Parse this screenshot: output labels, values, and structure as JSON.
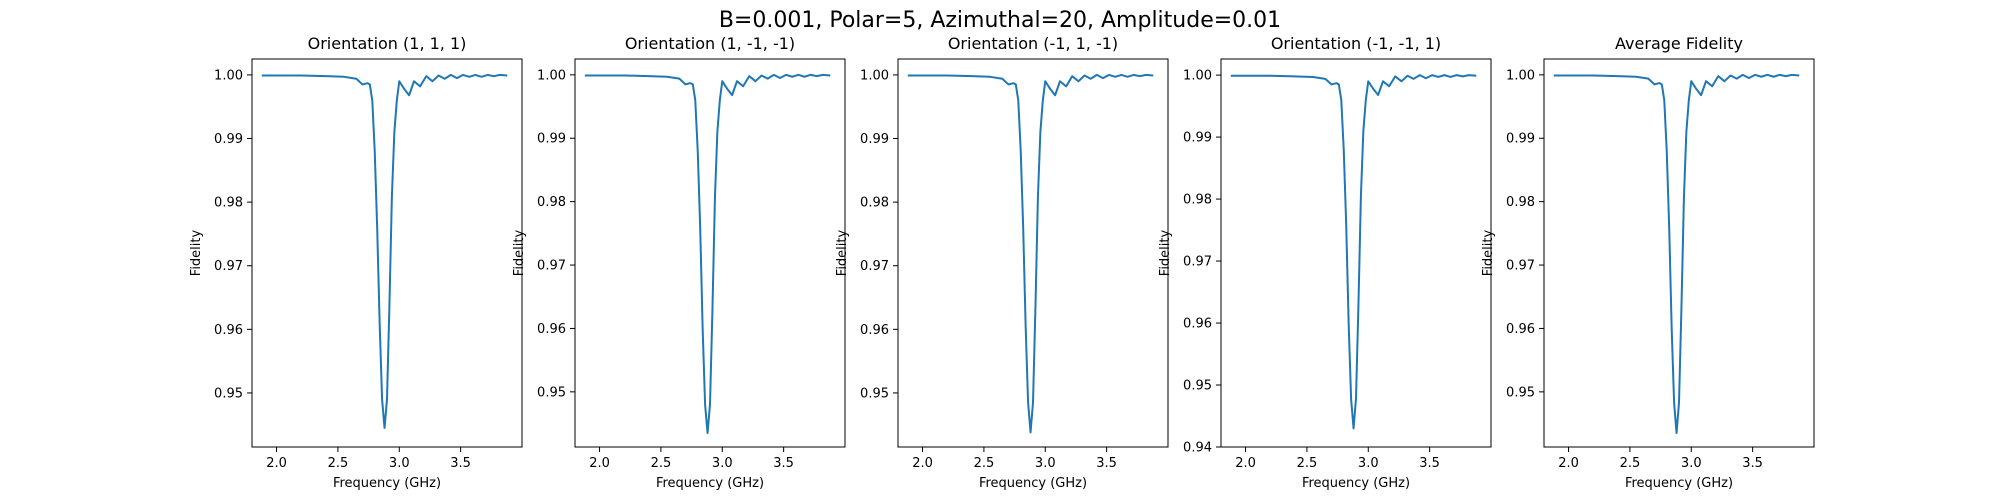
{
  "figure": {
    "suptitle": "B=0.001, Polar=5, Azimuthal=20, Amplitude=0.01",
    "series_color": "#1f77b4"
  },
  "chart_data": [
    {
      "type": "line",
      "title": "Orientation (1, 1, 1)",
      "xlabel": "Frequency (GHz)",
      "ylabel": "Fidelity",
      "xlim": [
        1.8,
        4.0
      ],
      "ylim": [
        0.9415,
        1.0025
      ],
      "xticks": [
        "2.0",
        "2.5",
        "3.0",
        "3.5"
      ],
      "yticks": [
        "0.95",
        "0.96",
        "0.97",
        "0.98",
        "0.99",
        "1.00"
      ],
      "grid": false,
      "x": [
        1.88,
        2.0,
        2.2,
        2.4,
        2.55,
        2.65,
        2.7,
        2.74,
        2.76,
        2.78,
        2.8,
        2.82,
        2.84,
        2.86,
        2.88,
        2.9,
        2.92,
        2.94,
        2.96,
        2.98,
        3.0,
        3.04,
        3.08,
        3.12,
        3.17,
        3.22,
        3.27,
        3.32,
        3.37,
        3.42,
        3.47,
        3.52,
        3.57,
        3.62,
        3.67,
        3.72,
        3.77,
        3.82,
        3.88
      ],
      "y": [
        0.9999,
        0.9999,
        0.9999,
        0.9998,
        0.9997,
        0.9994,
        0.9985,
        0.9987,
        0.9985,
        0.996,
        0.988,
        0.976,
        0.961,
        0.949,
        0.9445,
        0.949,
        0.964,
        0.981,
        0.991,
        0.996,
        0.999,
        0.9978,
        0.9968,
        0.999,
        0.9982,
        0.9998,
        0.999,
        0.9999,
        0.9994,
        1.0,
        0.9995,
        1.0,
        0.9997,
        1.0,
        0.9997,
        1.0,
        0.9998,
        1.0,
        0.9999
      ]
    },
    {
      "type": "line",
      "title": "Orientation (1, -1, -1)",
      "xlabel": "Frequency (GHz)",
      "ylabel": "Fidelity",
      "xlim": [
        1.8,
        4.0
      ],
      "ylim": [
        0.9413,
        1.0025
      ],
      "xticks": [
        "2.0",
        "2.5",
        "3.0",
        "3.5"
      ],
      "yticks": [
        "0.95",
        "0.96",
        "0.97",
        "0.98",
        "0.99",
        "1.00"
      ],
      "grid": false,
      "x": [
        1.88,
        2.0,
        2.2,
        2.4,
        2.55,
        2.65,
        2.7,
        2.74,
        2.76,
        2.78,
        2.8,
        2.82,
        2.84,
        2.86,
        2.88,
        2.9,
        2.92,
        2.94,
        2.96,
        2.98,
        3.0,
        3.04,
        3.08,
        3.12,
        3.17,
        3.22,
        3.27,
        3.32,
        3.37,
        3.42,
        3.47,
        3.52,
        3.57,
        3.62,
        3.67,
        3.72,
        3.77,
        3.82,
        3.88
      ],
      "y": [
        0.9999,
        0.9999,
        0.9999,
        0.9998,
        0.9997,
        0.9994,
        0.9985,
        0.9987,
        0.9985,
        0.996,
        0.988,
        0.976,
        0.96,
        0.948,
        0.9435,
        0.948,
        0.963,
        0.9805,
        0.991,
        0.996,
        0.999,
        0.9978,
        0.9968,
        0.999,
        0.9982,
        0.9998,
        0.999,
        0.9999,
        0.9994,
        1.0,
        0.9995,
        1.0,
        0.9997,
        1.0,
        0.9997,
        1.0,
        0.9998,
        1.0,
        0.9999
      ]
    },
    {
      "type": "line",
      "title": "Orientation (-1, 1, -1)",
      "xlabel": "Frequency (GHz)",
      "ylabel": "Fidelity",
      "xlim": [
        1.8,
        4.0
      ],
      "ylim": [
        0.9415,
        1.0025
      ],
      "xticks": [
        "2.0",
        "2.5",
        "3.0",
        "3.5"
      ],
      "yticks": [
        "0.95",
        "0.96",
        "0.97",
        "0.98",
        "0.99",
        "1.00"
      ],
      "grid": false,
      "x": [
        1.88,
        2.0,
        2.2,
        2.4,
        2.55,
        2.65,
        2.7,
        2.74,
        2.76,
        2.78,
        2.8,
        2.82,
        2.84,
        2.86,
        2.88,
        2.9,
        2.92,
        2.94,
        2.96,
        2.98,
        3.0,
        3.04,
        3.08,
        3.12,
        3.17,
        3.22,
        3.27,
        3.32,
        3.37,
        3.42,
        3.47,
        3.52,
        3.57,
        3.62,
        3.67,
        3.72,
        3.77,
        3.82,
        3.88
      ],
      "y": [
        0.9999,
        0.9999,
        0.9999,
        0.9998,
        0.9997,
        0.9994,
        0.9985,
        0.9987,
        0.9985,
        0.996,
        0.988,
        0.976,
        0.9605,
        0.9485,
        0.9438,
        0.9485,
        0.9635,
        0.9808,
        0.991,
        0.996,
        0.999,
        0.9978,
        0.9968,
        0.999,
        0.9982,
        0.9998,
        0.999,
        0.9999,
        0.9994,
        1.0,
        0.9995,
        1.0,
        0.9997,
        1.0,
        0.9997,
        1.0,
        0.9998,
        1.0,
        0.9999
      ]
    },
    {
      "type": "line",
      "title": "Orientation (-1, -1, 1)",
      "xlabel": "Frequency (GHz)",
      "ylabel": "Fidelity",
      "xlim": [
        1.8,
        4.0
      ],
      "ylim": [
        0.94,
        1.0026
      ],
      "xticks": [
        "2.0",
        "2.5",
        "3.0",
        "3.5"
      ],
      "yticks": [
        "0.94",
        "0.95",
        "0.96",
        "0.97",
        "0.98",
        "0.99",
        "1.00"
      ],
      "grid": false,
      "x": [
        1.88,
        2.0,
        2.2,
        2.4,
        2.55,
        2.65,
        2.7,
        2.74,
        2.76,
        2.78,
        2.8,
        2.82,
        2.84,
        2.86,
        2.88,
        2.9,
        2.92,
        2.94,
        2.96,
        2.98,
        3.0,
        3.04,
        3.08,
        3.12,
        3.17,
        3.22,
        3.27,
        3.32,
        3.37,
        3.42,
        3.47,
        3.52,
        3.57,
        3.62,
        3.67,
        3.72,
        3.77,
        3.82,
        3.88
      ],
      "y": [
        0.9999,
        0.9999,
        0.9999,
        0.9998,
        0.9997,
        0.9994,
        0.9985,
        0.9987,
        0.9985,
        0.996,
        0.988,
        0.976,
        0.96,
        0.9478,
        0.943,
        0.9478,
        0.963,
        0.9805,
        0.991,
        0.996,
        0.999,
        0.9978,
        0.9968,
        0.999,
        0.9982,
        0.9998,
        0.999,
        0.9999,
        0.9994,
        1.0,
        0.9995,
        1.0,
        0.9997,
        1.0,
        0.9997,
        1.0,
        0.9998,
        1.0,
        0.9999
      ]
    },
    {
      "type": "line",
      "title": "Average Fidelity",
      "xlabel": "Frequency (GHz)",
      "ylabel": "Fidelity",
      "xlim": [
        1.8,
        4.0
      ],
      "ylim": [
        0.9413,
        1.0025
      ],
      "xticks": [
        "2.0",
        "2.5",
        "3.0",
        "3.5"
      ],
      "yticks": [
        "0.95",
        "0.96",
        "0.97",
        "0.98",
        "0.99",
        "1.00"
      ],
      "grid": false,
      "x": [
        1.88,
        2.0,
        2.2,
        2.4,
        2.55,
        2.65,
        2.7,
        2.74,
        2.76,
        2.78,
        2.8,
        2.82,
        2.84,
        2.86,
        2.88,
        2.9,
        2.92,
        2.94,
        2.96,
        2.98,
        3.0,
        3.04,
        3.08,
        3.12,
        3.17,
        3.22,
        3.27,
        3.32,
        3.37,
        3.42,
        3.47,
        3.52,
        3.57,
        3.62,
        3.67,
        3.72,
        3.77,
        3.82,
        3.88
      ],
      "y": [
        0.9999,
        0.9999,
        0.9999,
        0.9998,
        0.9997,
        0.9994,
        0.9985,
        0.9987,
        0.9985,
        0.996,
        0.988,
        0.976,
        0.9602,
        0.9483,
        0.9435,
        0.9483,
        0.9633,
        0.9806,
        0.991,
        0.996,
        0.999,
        0.9978,
        0.9968,
        0.999,
        0.9982,
        0.9998,
        0.999,
        0.9999,
        0.9994,
        1.0,
        0.9995,
        1.0,
        0.9997,
        1.0,
        0.9997,
        1.0,
        0.9998,
        1.0,
        0.9999
      ]
    }
  ]
}
